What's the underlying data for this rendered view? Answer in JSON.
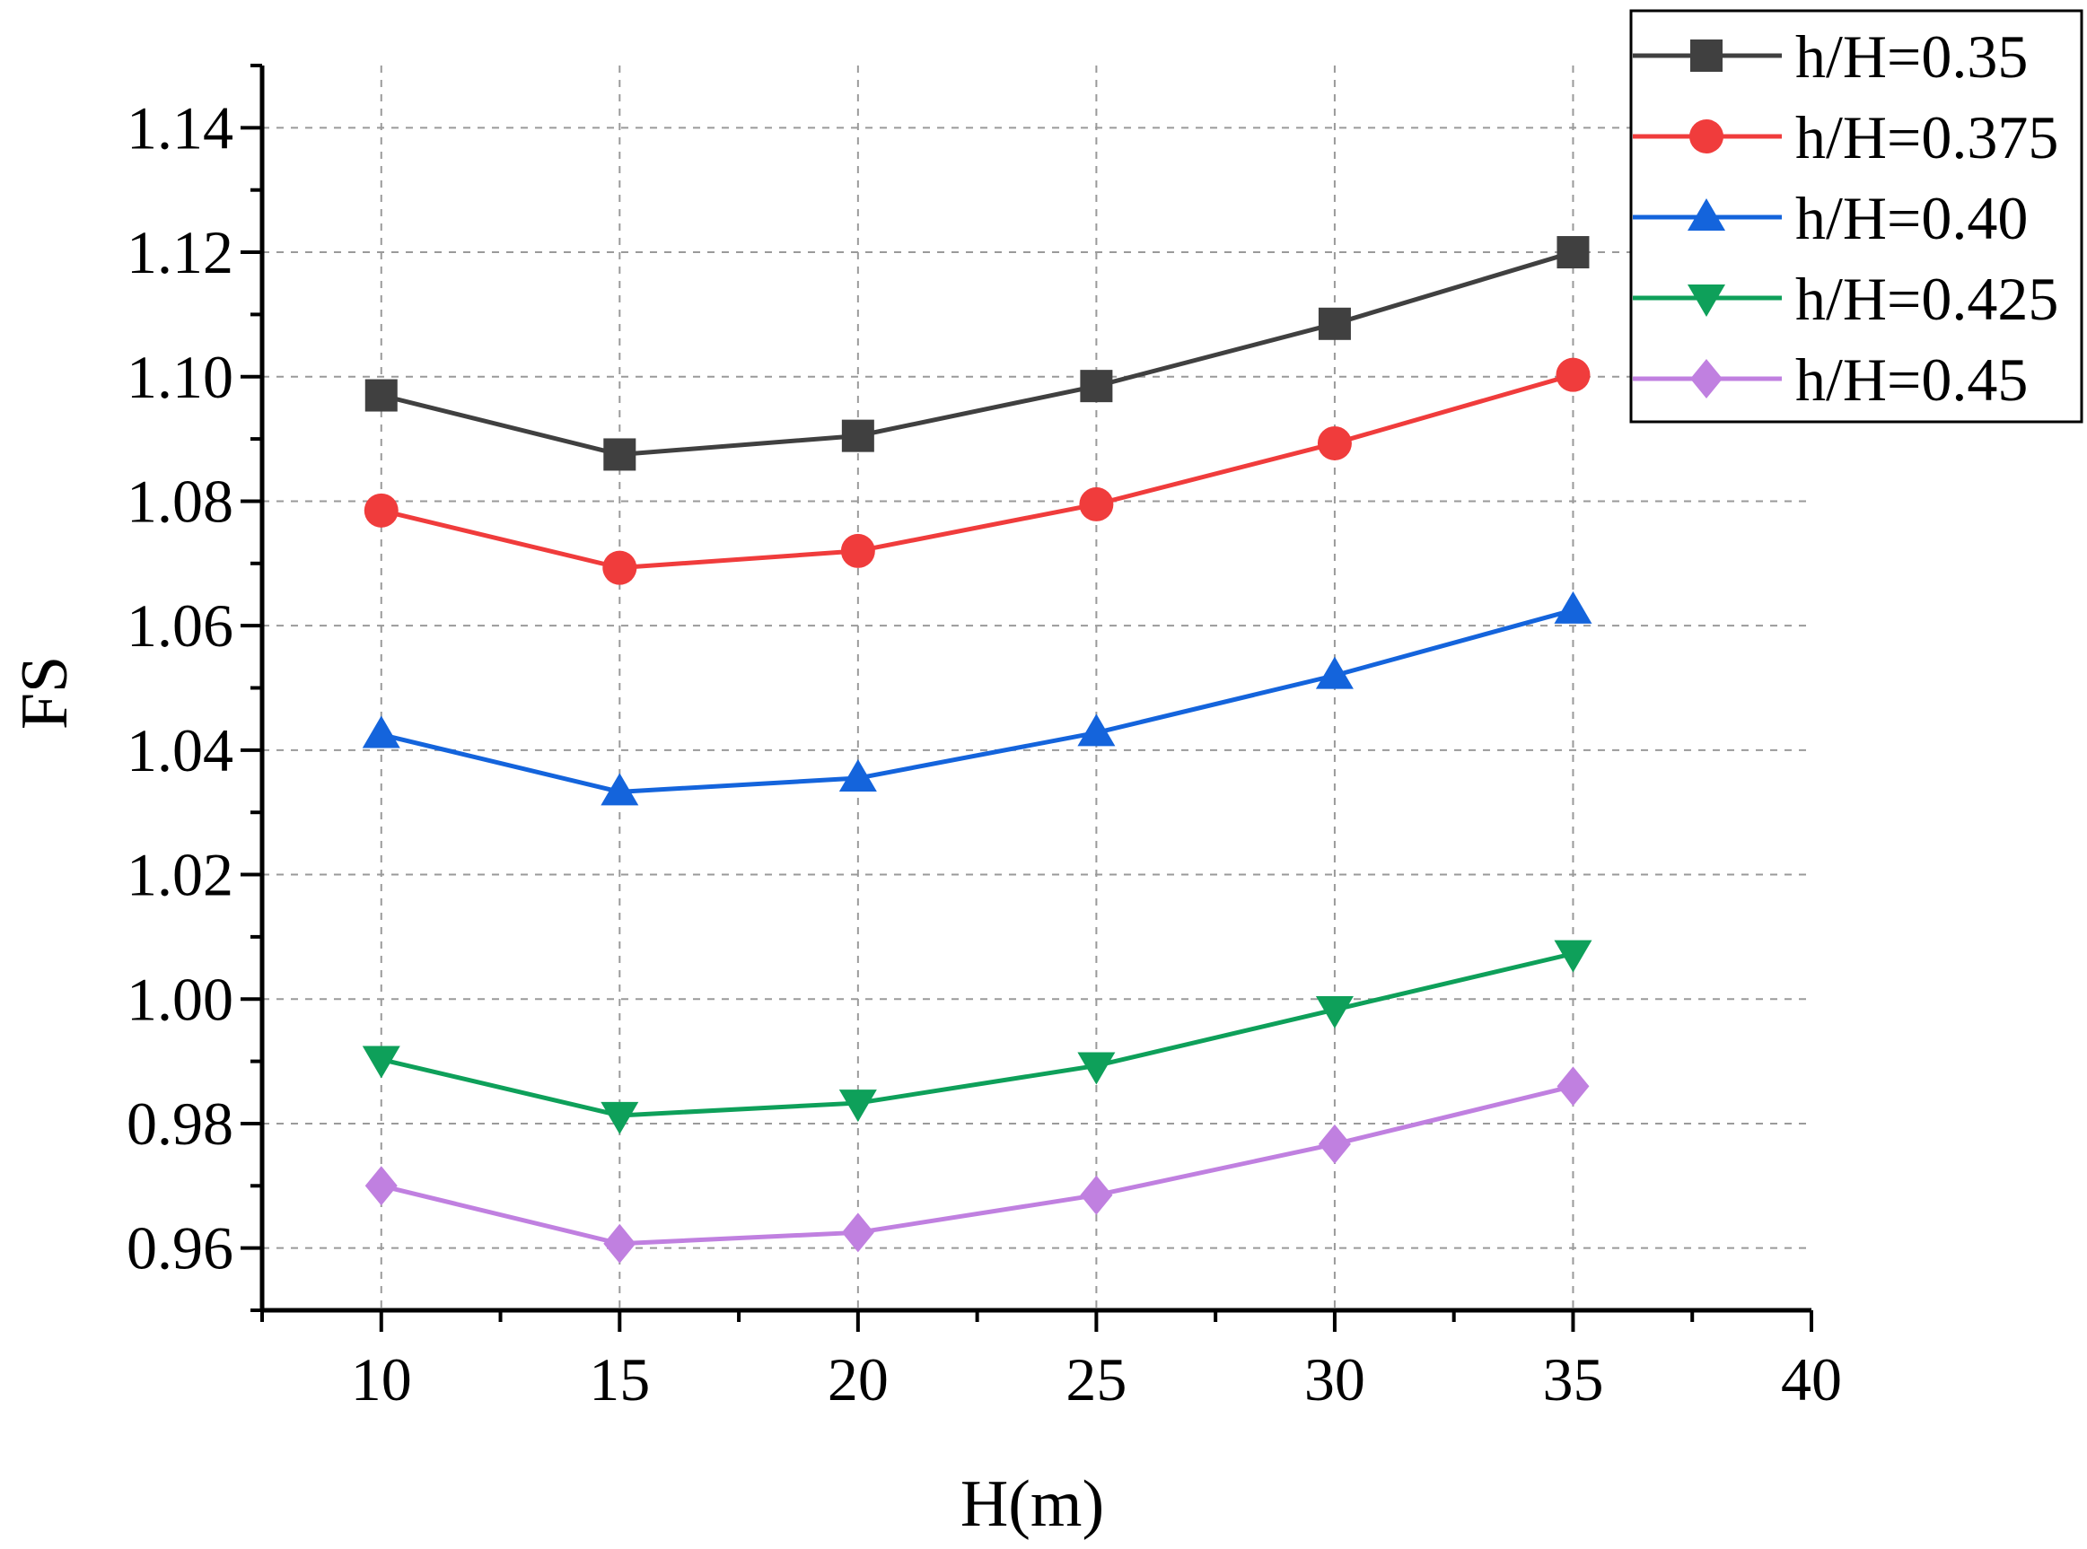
{
  "chart_data": {
    "type": "line",
    "title": "",
    "xlabel": "H(m)",
    "ylabel": "FS",
    "xlim": [
      7.5,
      40
    ],
    "ylim": [
      0.95,
      1.15
    ],
    "x_ticks": [
      10,
      15,
      20,
      25,
      30,
      35,
      40
    ],
    "x_tick_labels": [
      "10",
      "15",
      "20",
      "25",
      "30",
      "35",
      "40"
    ],
    "y_ticks": [
      0.96,
      0.98,
      1.0,
      1.02,
      1.04,
      1.06,
      1.08,
      1.1,
      1.12,
      1.14
    ],
    "y_tick_labels": [
      "0.96",
      "0.98",
      "1.00",
      "1.02",
      "1.04",
      "1.06",
      "1.08",
      "1.10",
      "1.12",
      "1.14"
    ],
    "grid": true,
    "legend_position": "top-right",
    "x": [
      10,
      15,
      20,
      25,
      30,
      35
    ],
    "series": [
      {
        "name": "h/H=0.35",
        "color": "#404040",
        "marker": "square",
        "values": [
          1.097,
          1.0875,
          1.0905,
          1.0985,
          1.1085,
          1.12
        ]
      },
      {
        "name": "h/H=0.375",
        "color": "#f03c3c",
        "marker": "circle",
        "values": [
          1.0785,
          1.0693,
          1.072,
          1.0795,
          1.0893,
          1.1003
        ]
      },
      {
        "name": "h/H=0.40",
        "color": "#1464dc",
        "marker": "triangle-up",
        "values": [
          1.0425,
          1.0333,
          1.0355,
          1.0428,
          1.052,
          1.0625
        ]
      },
      {
        "name": "h/H=0.425",
        "color": "#0ea05a",
        "marker": "triangle-down",
        "values": [
          0.9903,
          0.9813,
          0.9833,
          0.9893,
          0.9983,
          1.0073
        ]
      },
      {
        "name": "h/H=0.45",
        "color": "#c080e0",
        "marker": "diamond",
        "values": [
          0.97,
          0.9607,
          0.9625,
          0.9685,
          0.9767,
          0.986
        ]
      }
    ]
  }
}
